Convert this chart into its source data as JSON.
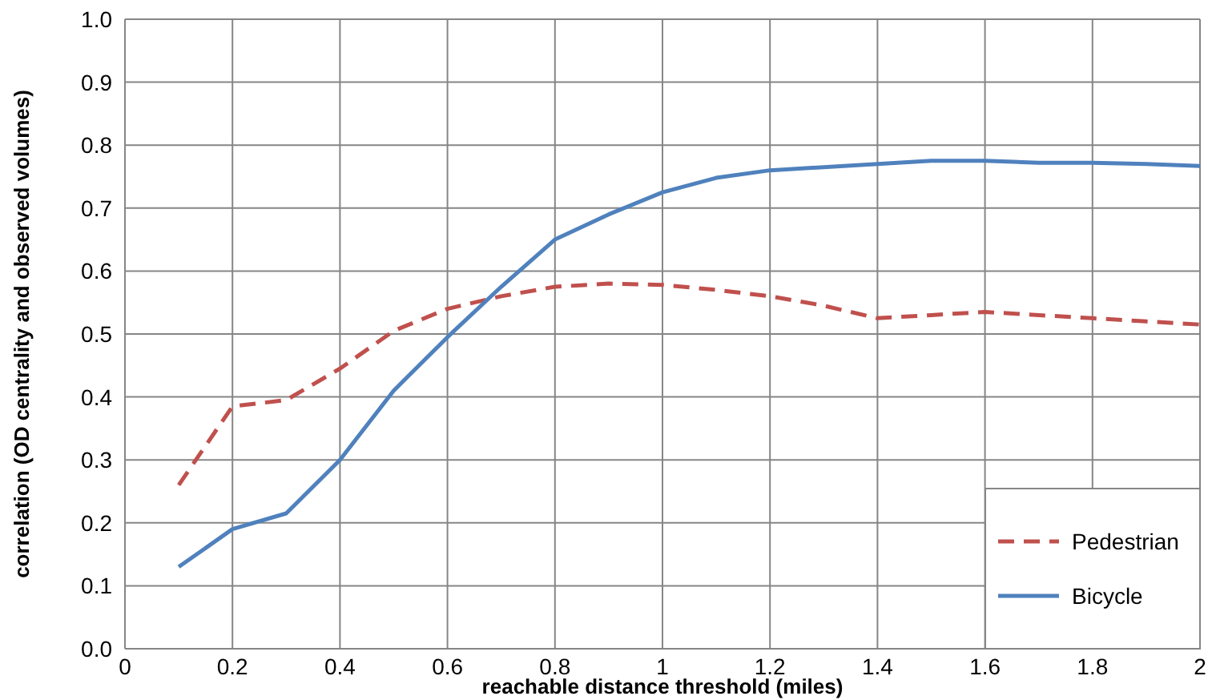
{
  "chart_data": {
    "type": "line",
    "xlabel": "reachable distance threshold (miles)",
    "ylabel": "correlation (OD centrality and observed volumes)",
    "x": [
      0.1,
      0.2,
      0.3,
      0.4,
      0.5,
      0.6,
      0.7,
      0.8,
      0.9,
      1.0,
      1.1,
      1.2,
      1.3,
      1.4,
      1.5,
      1.6,
      1.7,
      1.8,
      1.9,
      2.0
    ],
    "series": [
      {
        "name": "Pedestrian",
        "color": "#c0504d",
        "line_style": "dashed",
        "values": [
          0.26,
          0.385,
          0.395,
          0.445,
          0.505,
          0.54,
          0.56,
          0.575,
          0.58,
          0.578,
          0.57,
          0.56,
          0.545,
          0.525,
          0.53,
          0.535,
          0.53,
          0.525,
          0.52,
          0.515
        ]
      },
      {
        "name": "Bicycle",
        "color": "#4f81bd",
        "line_style": "solid",
        "values": [
          0.13,
          0.19,
          0.215,
          0.3,
          0.41,
          0.495,
          0.575,
          0.65,
          0.69,
          0.725,
          0.748,
          0.76,
          0.765,
          0.77,
          0.775,
          0.775,
          0.772,
          0.772,
          0.77,
          0.767
        ]
      }
    ],
    "xlim": [
      0,
      2
    ],
    "xticks": [
      0,
      0.2,
      0.4,
      0.6,
      0.8,
      1,
      1.2,
      1.4,
      1.6,
      1.8,
      2
    ],
    "ylim": [
      0,
      1
    ],
    "yticks": [
      {
        "value": 0,
        "label": "0.0"
      },
      {
        "value": 0.1,
        "label": "0.1"
      },
      {
        "value": 0.2,
        "label": "0.2"
      },
      {
        "value": 0.3,
        "label": "0.3"
      },
      {
        "value": 0.4,
        "label": "0.4"
      },
      {
        "value": 0.5,
        "label": "0.5"
      },
      {
        "value": 0.6,
        "label": "0.6"
      },
      {
        "value": 0.7,
        "label": "0.7"
      },
      {
        "value": 0.8,
        "label": "0.8"
      },
      {
        "value": 0.9,
        "label": "0.9"
      },
      {
        "value": 1,
        "label": "1.0"
      }
    ],
    "grid": true,
    "legend": "bottom right",
    "marker": "none"
  }
}
